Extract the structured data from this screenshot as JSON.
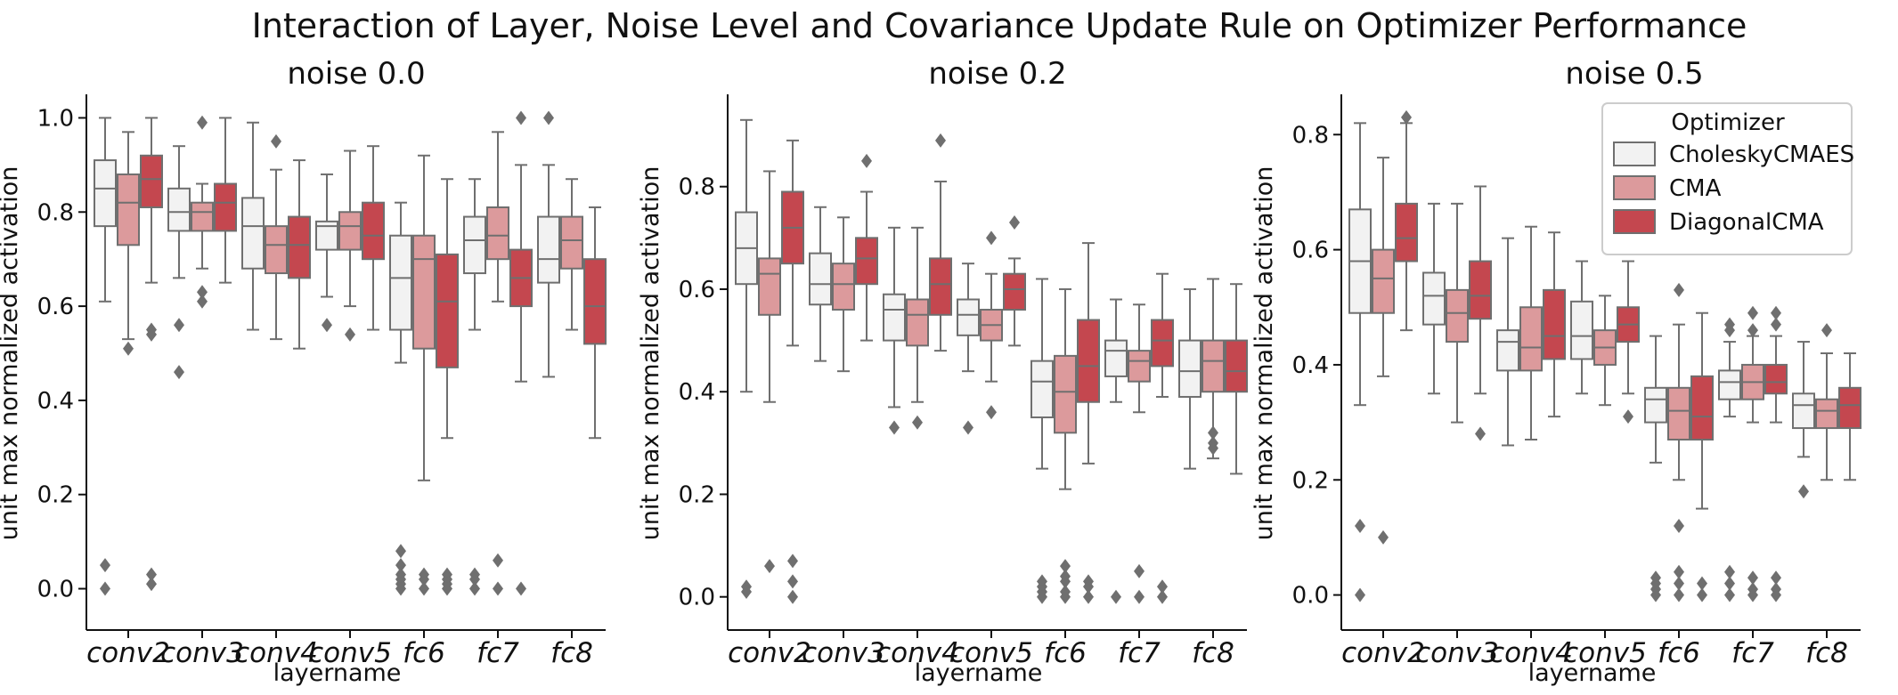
{
  "chart_data": {
    "type": "boxplot",
    "title": "Interaction of Layer, Noise Level and Covariance Update Rule on Optimizer Performance",
    "xlabel": "layername",
    "ylabel": "unit max normalized activation",
    "categories": [
      "conv2",
      "conv3",
      "conv4",
      "conv5",
      "fc6",
      "fc7",
      "fc8"
    ],
    "legend": {
      "title": "Optimizer",
      "position": "upper-right of third panel",
      "entries": [
        {
          "name": "CholeskyCMAES",
          "color": "#f2f2f2"
        },
        {
          "name": "CMA",
          "color": "#dc9a9c"
        },
        {
          "name": "DiagonalCMA",
          "color": "#c4474f"
        }
      ]
    },
    "panels": [
      {
        "title": "noise 0.0",
        "ylim": [
          -0.05,
          1.05
        ],
        "yticks": [
          "0.0",
          "0.2",
          "0.4",
          "0.6",
          "0.8",
          "1.0"
        ],
        "series": [
          {
            "name": "CholeskyCMAES",
            "boxes": [
              {
                "q1": 0.77,
                "med": 0.85,
                "q3": 0.91,
                "wl": 0.61,
                "wh": 1.0,
                "out": [
                  0.05,
                  0.0
                ]
              },
              {
                "q1": 0.76,
                "med": 0.8,
                "q3": 0.85,
                "wl": 0.66,
                "wh": 0.94,
                "out": [
                  0.56,
                  0.46
                ]
              },
              {
                "q1": 0.68,
                "med": 0.77,
                "q3": 0.83,
                "wl": 0.55,
                "wh": 0.99,
                "out": []
              },
              {
                "q1": 0.72,
                "med": 0.77,
                "q3": 0.78,
                "wl": 0.62,
                "wh": 0.88,
                "out": [
                  0.56
                ]
              },
              {
                "q1": 0.55,
                "med": 0.66,
                "q3": 0.75,
                "wl": 0.48,
                "wh": 0.82,
                "out": [
                  0.08,
                  0.05,
                  0.03,
                  0.02,
                  0.01,
                  0.0
                ]
              },
              {
                "q1": 0.67,
                "med": 0.74,
                "q3": 0.79,
                "wl": 0.55,
                "wh": 0.87,
                "out": [
                  0.03,
                  0.02,
                  0.0
                ]
              },
              {
                "q1": 0.65,
                "med": 0.7,
                "q3": 0.79,
                "wl": 0.45,
                "wh": 0.9,
                "out": [
                  1.0
                ]
              }
            ]
          },
          {
            "name": "CMA",
            "boxes": [
              {
                "q1": 0.73,
                "med": 0.82,
                "q3": 0.88,
                "wl": 0.53,
                "wh": 0.97,
                "out": [
                  0.51
                ]
              },
              {
                "q1": 0.76,
                "med": 0.8,
                "q3": 0.82,
                "wl": 0.68,
                "wh": 0.86,
                "out": [
                  0.99,
                  0.63,
                  0.61
                ]
              },
              {
                "q1": 0.67,
                "med": 0.73,
                "q3": 0.77,
                "wl": 0.53,
                "wh": 0.89,
                "out": [
                  0.95
                ]
              },
              {
                "q1": 0.72,
                "med": 0.77,
                "q3": 0.8,
                "wl": 0.6,
                "wh": 0.93,
                "out": [
                  0.54
                ]
              },
              {
                "q1": 0.51,
                "med": 0.7,
                "q3": 0.75,
                "wl": 0.23,
                "wh": 0.92,
                "out": [
                  0.03,
                  0.02,
                  0.0
                ]
              },
              {
                "q1": 0.7,
                "med": 0.75,
                "q3": 0.81,
                "wl": 0.61,
                "wh": 0.97,
                "out": [
                  0.06,
                  0.0
                ]
              },
              {
                "q1": 0.68,
                "med": 0.74,
                "q3": 0.79,
                "wl": 0.55,
                "wh": 0.87,
                "out": []
              }
            ]
          },
          {
            "name": "DiagonalCMA",
            "boxes": [
              {
                "q1": 0.81,
                "med": 0.87,
                "q3": 0.92,
                "wl": 0.65,
                "wh": 1.0,
                "out": [
                  0.55,
                  0.54,
                  0.03,
                  0.01
                ]
              },
              {
                "q1": 0.76,
                "med": 0.82,
                "q3": 0.86,
                "wl": 0.65,
                "wh": 1.0,
                "out": []
              },
              {
                "q1": 0.66,
                "med": 0.73,
                "q3": 0.79,
                "wl": 0.51,
                "wh": 0.91,
                "out": []
              },
              {
                "q1": 0.7,
                "med": 0.75,
                "q3": 0.82,
                "wl": 0.55,
                "wh": 0.94,
                "out": []
              },
              {
                "q1": 0.47,
                "med": 0.61,
                "q3": 0.71,
                "wl": 0.32,
                "wh": 0.87,
                "out": [
                  0.03,
                  0.02,
                  0.01,
                  0.0
                ]
              },
              {
                "q1": 0.6,
                "med": 0.66,
                "q3": 0.72,
                "wl": 0.44,
                "wh": 0.9,
                "out": [
                  1.0,
                  0.0
                ]
              },
              {
                "q1": 0.52,
                "med": 0.6,
                "q3": 0.7,
                "wl": 0.32,
                "wh": 0.81,
                "out": []
              }
            ]
          }
        ]
      },
      {
        "title": "noise 0.2",
        "ylim": [
          -0.03,
          0.98
        ],
        "yticks": [
          "0.0",
          "0.2",
          "0.4",
          "0.6",
          "0.8"
        ],
        "series": [
          {
            "name": "CholeskyCMAES",
            "boxes": [
              {
                "q1": 0.61,
                "med": 0.68,
                "q3": 0.75,
                "wl": 0.4,
                "wh": 0.93,
                "out": [
                  0.02,
                  0.01
                ]
              },
              {
                "q1": 0.57,
                "med": 0.61,
                "q3": 0.67,
                "wl": 0.46,
                "wh": 0.76,
                "out": []
              },
              {
                "q1": 0.5,
                "med": 0.56,
                "q3": 0.59,
                "wl": 0.37,
                "wh": 0.72,
                "out": [
                  0.33
                ]
              },
              {
                "q1": 0.51,
                "med": 0.55,
                "q3": 0.58,
                "wl": 0.44,
                "wh": 0.65,
                "out": [
                  0.33
                ]
              },
              {
                "q1": 0.35,
                "med": 0.42,
                "q3": 0.46,
                "wl": 0.25,
                "wh": 0.62,
                "out": [
                  0.03,
                  0.02,
                  0.01,
                  0.0
                ]
              },
              {
                "q1": 0.43,
                "med": 0.48,
                "q3": 0.5,
                "wl": 0.38,
                "wh": 0.58,
                "out": [
                  0.0
                ]
              },
              {
                "q1": 0.39,
                "med": 0.44,
                "q3": 0.5,
                "wl": 0.25,
                "wh": 0.6,
                "out": []
              }
            ]
          },
          {
            "name": "CMA",
            "boxes": [
              {
                "q1": 0.55,
                "med": 0.63,
                "q3": 0.66,
                "wl": 0.38,
                "wh": 0.83,
                "out": [
                  0.06
                ]
              },
              {
                "q1": 0.56,
                "med": 0.61,
                "q3": 0.65,
                "wl": 0.44,
                "wh": 0.74,
                "out": []
              },
              {
                "q1": 0.49,
                "med": 0.55,
                "q3": 0.58,
                "wl": 0.38,
                "wh": 0.72,
                "out": [
                  0.34
                ]
              },
              {
                "q1": 0.5,
                "med": 0.53,
                "q3": 0.56,
                "wl": 0.42,
                "wh": 0.63,
                "out": [
                  0.7,
                  0.36
                ]
              },
              {
                "q1": 0.32,
                "med": 0.4,
                "q3": 0.47,
                "wl": 0.21,
                "wh": 0.6,
                "out": [
                  0.06,
                  0.04,
                  0.03,
                  0.01,
                  0.0
                ]
              },
              {
                "q1": 0.42,
                "med": 0.46,
                "q3": 0.48,
                "wl": 0.36,
                "wh": 0.57,
                "out": [
                  0.05,
                  0.0
                ]
              },
              {
                "q1": 0.4,
                "med": 0.46,
                "q3": 0.5,
                "wl": 0.27,
                "wh": 0.62,
                "out": [
                  0.32,
                  0.3,
                  0.29
                ]
              }
            ]
          },
          {
            "name": "DiagonalCMA",
            "boxes": [
              {
                "q1": 0.65,
                "med": 0.72,
                "q3": 0.79,
                "wl": 0.49,
                "wh": 0.89,
                "out": [
                  0.07,
                  0.03,
                  0.0
                ]
              },
              {
                "q1": 0.61,
                "med": 0.66,
                "q3": 0.7,
                "wl": 0.5,
                "wh": 0.79,
                "out": [
                  0.85
                ]
              },
              {
                "q1": 0.55,
                "med": 0.61,
                "q3": 0.66,
                "wl": 0.48,
                "wh": 0.81,
                "out": [
                  0.89
                ]
              },
              {
                "q1": 0.56,
                "med": 0.6,
                "q3": 0.63,
                "wl": 0.49,
                "wh": 0.66,
                "out": [
                  0.73
                ]
              },
              {
                "q1": 0.38,
                "med": 0.45,
                "q3": 0.54,
                "wl": 0.26,
                "wh": 0.69,
                "out": [
                  0.03,
                  0.02,
                  0.0
                ]
              },
              {
                "q1": 0.45,
                "med": 0.5,
                "q3": 0.54,
                "wl": 0.39,
                "wh": 0.63,
                "out": [
                  0.02,
                  0.0
                ]
              },
              {
                "q1": 0.4,
                "med": 0.44,
                "q3": 0.5,
                "wl": 0.24,
                "wh": 0.61,
                "out": []
              }
            ]
          }
        ]
      },
      {
        "title": "noise 0.5",
        "ylim": [
          -0.03,
          0.87
        ],
        "yticks": [
          "0.0",
          "0.2",
          "0.4",
          "0.6",
          "0.8"
        ],
        "series": [
          {
            "name": "CholeskyCMAES",
            "boxes": [
              {
                "q1": 0.49,
                "med": 0.58,
                "q3": 0.67,
                "wl": 0.33,
                "wh": 0.82,
                "out": [
                  0.12,
                  0.0
                ]
              },
              {
                "q1": 0.47,
                "med": 0.52,
                "q3": 0.56,
                "wl": 0.35,
                "wh": 0.68,
                "out": []
              },
              {
                "q1": 0.39,
                "med": 0.44,
                "q3": 0.46,
                "wl": 0.26,
                "wh": 0.62,
                "out": []
              },
              {
                "q1": 0.41,
                "med": 0.45,
                "q3": 0.51,
                "wl": 0.35,
                "wh": 0.58,
                "out": []
              },
              {
                "q1": 0.3,
                "med": 0.34,
                "q3": 0.36,
                "wl": 0.23,
                "wh": 0.45,
                "out": [
                  0.03,
                  0.02,
                  0.01,
                  0.0
                ]
              },
              {
                "q1": 0.34,
                "med": 0.37,
                "q3": 0.39,
                "wl": 0.31,
                "wh": 0.44,
                "out": [
                  0.47,
                  0.46,
                  0.04,
                  0.02,
                  0.0
                ]
              },
              {
                "q1": 0.29,
                "med": 0.33,
                "q3": 0.35,
                "wl": 0.24,
                "wh": 0.44,
                "out": [
                  0.18
                ]
              }
            ]
          },
          {
            "name": "CMA",
            "boxes": [
              {
                "q1": 0.49,
                "med": 0.55,
                "q3": 0.6,
                "wl": 0.38,
                "wh": 0.76,
                "out": [
                  0.1
                ]
              },
              {
                "q1": 0.44,
                "med": 0.49,
                "q3": 0.53,
                "wl": 0.3,
                "wh": 0.68,
                "out": []
              },
              {
                "q1": 0.39,
                "med": 0.43,
                "q3": 0.5,
                "wl": 0.27,
                "wh": 0.64,
                "out": []
              },
              {
                "q1": 0.4,
                "med": 0.43,
                "q3": 0.46,
                "wl": 0.33,
                "wh": 0.52,
                "out": []
              },
              {
                "q1": 0.27,
                "med": 0.32,
                "q3": 0.36,
                "wl": 0.2,
                "wh": 0.47,
                "out": [
                  0.53,
                  0.12,
                  0.04,
                  0.02,
                  0.0
                ]
              },
              {
                "q1": 0.34,
                "med": 0.37,
                "q3": 0.4,
                "wl": 0.3,
                "wh": 0.45,
                "out": [
                  0.49,
                  0.46,
                  0.03,
                  0.01,
                  0.0
                ]
              },
              {
                "q1": 0.29,
                "med": 0.32,
                "q3": 0.34,
                "wl": 0.2,
                "wh": 0.42,
                "out": [
                  0.46
                ]
              }
            ]
          },
          {
            "name": "DiagonalCMA",
            "boxes": [
              {
                "q1": 0.58,
                "med": 0.62,
                "q3": 0.68,
                "wl": 0.46,
                "wh": 0.82,
                "out": [
                  0.83
                ]
              },
              {
                "q1": 0.48,
                "med": 0.52,
                "q3": 0.58,
                "wl": 0.35,
                "wh": 0.71,
                "out": [
                  0.28
                ]
              },
              {
                "q1": 0.41,
                "med": 0.45,
                "q3": 0.53,
                "wl": 0.31,
                "wh": 0.63,
                "out": []
              },
              {
                "q1": 0.44,
                "med": 0.47,
                "q3": 0.5,
                "wl": 0.35,
                "wh": 0.58,
                "out": [
                  0.31
                ]
              },
              {
                "q1": 0.27,
                "med": 0.31,
                "q3": 0.38,
                "wl": 0.15,
                "wh": 0.49,
                "out": [
                  0.02,
                  0.0
                ]
              },
              {
                "q1": 0.35,
                "med": 0.37,
                "q3": 0.4,
                "wl": 0.3,
                "wh": 0.45,
                "out": [
                  0.49,
                  0.47,
                  0.03,
                  0.01,
                  0.0
                ]
              },
              {
                "q1": 0.29,
                "med": 0.33,
                "q3": 0.36,
                "wl": 0.2,
                "wh": 0.42,
                "out": []
              }
            ]
          }
        ]
      }
    ]
  }
}
